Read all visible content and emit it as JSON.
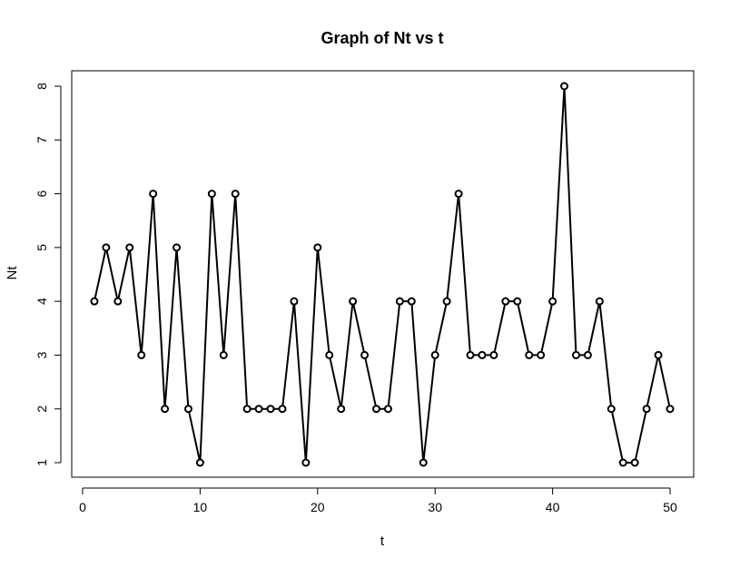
{
  "chart_data": {
    "type": "line",
    "title": "Graph of Nt vs t",
    "xlabel": "t",
    "ylabel": "Nt",
    "xlim": [
      1,
      50
    ],
    "ylim": [
      1,
      8
    ],
    "xticks": [
      0,
      10,
      20,
      30,
      40,
      50
    ],
    "yticks": [
      1,
      2,
      3,
      4,
      5,
      6,
      7,
      8
    ],
    "grid": false,
    "legend": "none",
    "markers": "open-circle",
    "series": [
      {
        "x": [
          1,
          2,
          3,
          4,
          5,
          6,
          7,
          8,
          9,
          10,
          11,
          12,
          13,
          14,
          15,
          16,
          17,
          18,
          19,
          20,
          21,
          22,
          23,
          24,
          25,
          26,
          27,
          28,
          29,
          30,
          31,
          32,
          33,
          34,
          35,
          36,
          37,
          38,
          39,
          40,
          41,
          42,
          43,
          44,
          45,
          46,
          47,
          48,
          49,
          50
        ],
        "values": [
          4,
          5,
          4,
          5,
          3,
          6,
          2,
          5,
          2,
          1,
          6,
          3,
          6,
          2,
          2,
          2,
          2,
          4,
          1,
          5,
          3,
          2,
          4,
          3,
          2,
          2,
          4,
          4,
          1,
          3,
          4,
          6,
          3,
          3,
          3,
          4,
          4,
          3,
          3,
          4,
          8,
          3,
          3,
          4,
          2,
          1,
          1,
          2,
          3,
          2
        ]
      }
    ]
  }
}
